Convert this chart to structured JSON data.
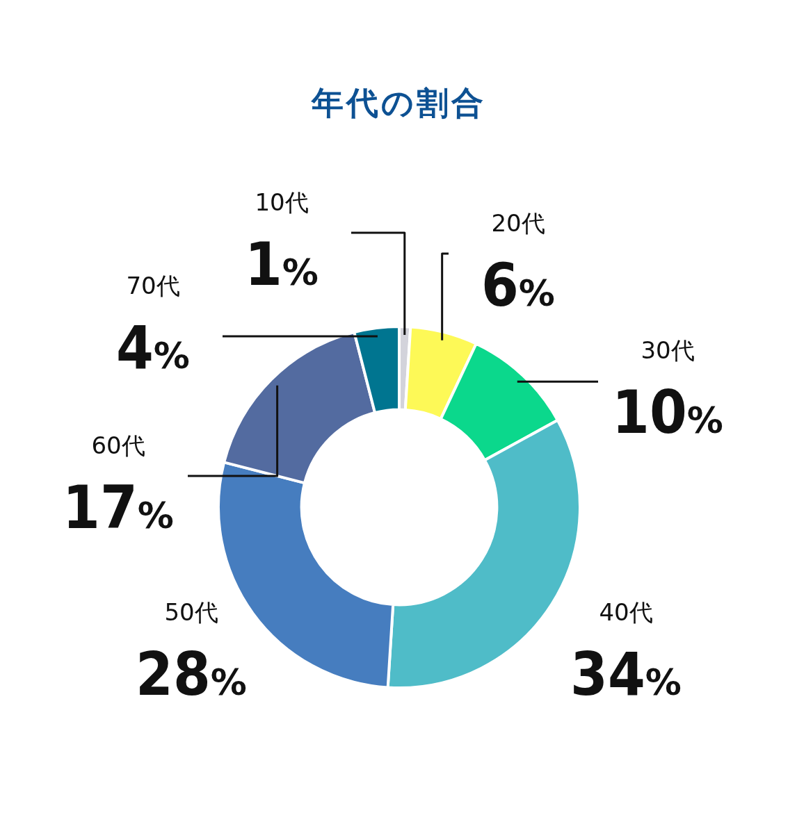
{
  "chart_data": {
    "type": "donut",
    "title": "年代の割合",
    "categories": [
      "10代",
      "20代",
      "30代",
      "40代",
      "50代",
      "60代",
      "70代"
    ],
    "values": [
      1,
      6,
      10,
      34,
      28,
      17,
      4
    ],
    "value_labels": [
      "1%",
      "6%",
      "10%",
      "34%",
      "28%",
      "17%",
      "4%"
    ],
    "colors": [
      "#d3d3db",
      "#fdf957",
      "#0bd88c",
      "#4fbcc8",
      "#467dbf",
      "#536ba0",
      "#007590"
    ]
  }
}
